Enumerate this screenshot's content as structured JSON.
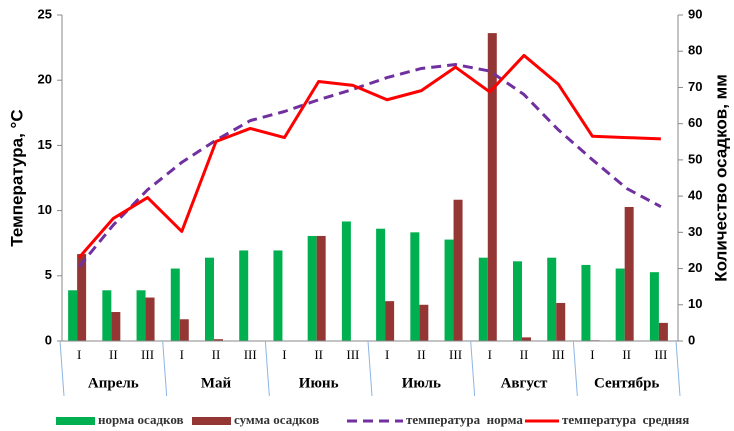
{
  "chart_data": {
    "type": "combo",
    "y_label": "Температура, °C",
    "y2_label": "Количество осадков, мм",
    "categories": [
      "I",
      "II",
      "III",
      "I",
      "II",
      "III",
      "I",
      "II",
      "III",
      "I",
      "II",
      "III",
      "I",
      "II",
      "III",
      "I",
      "II",
      "III"
    ],
    "groups": [
      "Апрель",
      "Май",
      "Июнь",
      "Июль",
      "Август",
      "Сентябрь"
    ],
    "ylim": [
      0,
      25
    ],
    "yticks": [
      0,
      5,
      10,
      15,
      20,
      25
    ],
    "y2lim": [
      0,
      90
    ],
    "y2ticks": [
      0,
      10,
      20,
      30,
      40,
      50,
      60,
      70,
      80,
      90
    ],
    "series": [
      {
        "name": "норма осадков",
        "type": "bar",
        "axis": "y2",
        "color": "#00b050",
        "values": [
          14,
          14,
          14,
          20,
          23,
          25,
          25,
          29,
          33,
          31,
          30,
          28,
          23,
          22,
          23,
          21,
          20,
          19
        ]
      },
      {
        "name": "сумма осадков",
        "type": "bar",
        "axis": "y2",
        "color": "#943634",
        "values": [
          24,
          8,
          12,
          6,
          0.5,
          0,
          0,
          29,
          0,
          11,
          10,
          39,
          85,
          1,
          10.5,
          0.2,
          37,
          5
        ]
      },
      {
        "name": "температура  норма",
        "type": "line",
        "dashed": true,
        "color": "#7030a0",
        "values": [
          5.7,
          8.9,
          11.6,
          13.7,
          15.4,
          16.9,
          17.6,
          18.5,
          19.3,
          20.2,
          20.9,
          21.2,
          20.7,
          18.9,
          16.2,
          13.9,
          11.7,
          10.3
        ]
      },
      {
        "name": "температура  средняя",
        "type": "line",
        "dashed": false,
        "color": "#ff0000",
        "values": [
          6.4,
          9.4,
          11,
          8.4,
          15.3,
          16.3,
          15.6,
          19.9,
          19.6,
          18.5,
          19.2,
          21,
          19.1,
          21.9,
          19.7,
          15.7,
          15.6,
          15.5
        ]
      }
    ]
  }
}
